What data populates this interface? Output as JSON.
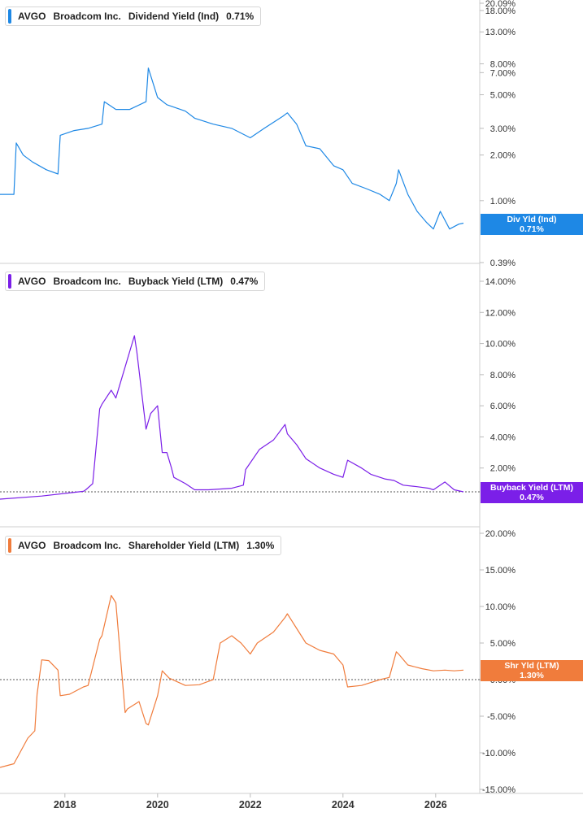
{
  "panels": [
    {
      "ticker": "AVGO",
      "company": "Broadcom Inc.",
      "metric": "Dividend Yield (Ind)",
      "value": "0.71%",
      "badge_label": "Div Yld (Ind)",
      "badge_value": "0.71%",
      "color": "#1e88e5"
    },
    {
      "ticker": "AVGO",
      "company": "Broadcom Inc.",
      "metric": "Buyback Yield (LTM)",
      "value": "0.47%",
      "badge_label": "Buyback Yield (LTM)",
      "badge_value": "0.47%",
      "color": "#7b1fe8"
    },
    {
      "ticker": "AVGO",
      "company": "Broadcom Inc.",
      "metric": "Shareholder Yield (LTM)",
      "value": "1.30%",
      "badge_label": "Shr Yld (LTM)",
      "badge_value": "1.30%",
      "color": "#f07c3c"
    }
  ],
  "chart_data": [
    {
      "type": "line",
      "title": "AVGO Broadcom Inc. Dividend Yield (Ind) 0.71%",
      "scale": "log",
      "color": "#1e88e5",
      "ylim": [
        0.39,
        20.09
      ],
      "y_ticks": [
        "20.09%",
        "18.00%",
        "13.00%",
        "8.00%",
        "7.00%",
        "5.00%",
        "3.00%",
        "2.00%",
        "1.00%",
        "0.71%",
        "0.39%"
      ],
      "y_tick_values": [
        20.09,
        18,
        13,
        8,
        7,
        5,
        3,
        2,
        1,
        0.71,
        0.39
      ],
      "x": [
        2016.6,
        2016.9,
        2016.95,
        2017.1,
        2017.3,
        2017.6,
        2017.85,
        2017.9,
        2018.2,
        2018.5,
        2018.8,
        2018.85,
        2019.1,
        2019.4,
        2019.75,
        2019.8,
        2020.0,
        2020.2,
        2020.6,
        2020.8,
        2021.2,
        2021.6,
        2022.0,
        2022.3,
        2022.7,
        2022.8,
        2023.0,
        2023.2,
        2023.5,
        2023.8,
        2024.0,
        2024.2,
        2024.5,
        2024.8,
        2025.0,
        2025.15,
        2025.2,
        2025.4,
        2025.6,
        2025.8,
        2025.95,
        2026.1,
        2026.3,
        2026.5,
        2026.6
      ],
      "y": [
        1.1,
        1.1,
        2.4,
        2.0,
        1.8,
        1.6,
        1.5,
        2.7,
        2.9,
        3.0,
        3.2,
        4.5,
        4.0,
        4.0,
        4.5,
        7.5,
        4.8,
        4.3,
        3.9,
        3.5,
        3.2,
        3.0,
        2.6,
        3.0,
        3.6,
        3.8,
        3.2,
        2.3,
        2.2,
        1.7,
        1.6,
        1.3,
        1.2,
        1.1,
        1.0,
        1.3,
        1.6,
        1.1,
        0.85,
        0.72,
        0.65,
        0.85,
        0.65,
        0.7,
        0.71
      ],
      "xlim": [
        2016.6,
        2026.6
      ]
    },
    {
      "type": "line",
      "title": "AVGO Broadcom Inc. Buyback Yield (LTM) 0.47%",
      "color": "#7b1fe8",
      "ylim": [
        0,
        14
      ],
      "y_ticks": [
        "14.00%",
        "12.00%",
        "10.00%",
        "8.00%",
        "6.00%",
        "4.00%",
        "2.00%",
        "0.47%"
      ],
      "y_tick_values": [
        14,
        12,
        10,
        8,
        6,
        4,
        2,
        0.47
      ],
      "x": [
        2016.6,
        2017.5,
        2018.3,
        2018.4,
        2018.45,
        2018.6,
        2018.75,
        2018.8,
        2019.0,
        2019.1,
        2019.3,
        2019.5,
        2019.55,
        2019.75,
        2019.85,
        2020.0,
        2020.1,
        2020.2,
        2020.3,
        2020.35,
        2020.6,
        2020.8,
        2021.1,
        2021.6,
        2021.85,
        2021.9,
        2022.2,
        2022.5,
        2022.75,
        2022.8,
        2023.0,
        2023.2,
        2023.5,
        2023.8,
        2024.0,
        2024.1,
        2024.4,
        2024.6,
        2024.9,
        2025.1,
        2025.3,
        2025.6,
        2025.85,
        2025.95,
        2026.2,
        2026.4,
        2026.6
      ],
      "y": [
        0.0,
        0.2,
        0.47,
        0.5,
        0.6,
        1.0,
        5.8,
        6.1,
        7.0,
        6.5,
        8.5,
        10.5,
        9.5,
        4.5,
        5.5,
        6.0,
        3.0,
        3.0,
        2.0,
        1.4,
        1.0,
        0.6,
        0.6,
        0.7,
        0.9,
        1.9,
        3.2,
        3.8,
        4.8,
        4.2,
        3.5,
        2.6,
        2.0,
        1.6,
        1.4,
        2.5,
        2.0,
        1.6,
        1.3,
        1.2,
        0.9,
        0.8,
        0.7,
        0.6,
        1.1,
        0.6,
        0.47
      ],
      "xlim": [
        2016.6,
        2026.6
      ]
    },
    {
      "type": "line",
      "title": "AVGO Broadcom Inc. Shareholder Yield (LTM) 1.30%",
      "color": "#f07c3c",
      "ylim": [
        -15,
        20
      ],
      "y_ticks": [
        "20.00%",
        "15.00%",
        "10.00%",
        "5.00%",
        "1.30%",
        "0.00%",
        "-5.00%",
        "-10.00%",
        "-15.00%"
      ],
      "y_tick_values": [
        20,
        15,
        10,
        5,
        1.3,
        0,
        -5,
        -10,
        -15
      ],
      "x": [
        2016.6,
        2016.9,
        2017.2,
        2017.35,
        2017.4,
        2017.5,
        2017.65,
        2017.85,
        2017.9,
        2018.1,
        2018.4,
        2018.5,
        2018.75,
        2018.8,
        2019.0,
        2019.1,
        2019.3,
        2019.35,
        2019.6,
        2019.75,
        2019.8,
        2020.0,
        2020.1,
        2020.25,
        2020.6,
        2020.9,
        2021.2,
        2021.35,
        2021.6,
        2021.8,
        2022.0,
        2022.15,
        2022.5,
        2022.75,
        2022.8,
        2023.0,
        2023.2,
        2023.5,
        2023.8,
        2024.0,
        2024.1,
        2024.4,
        2024.8,
        2025.0,
        2025.15,
        2025.2,
        2025.4,
        2025.7,
        2025.95,
        2026.2,
        2026.4,
        2026.6
      ],
      "y": [
        -12,
        -11.5,
        -8,
        -7,
        -2,
        2.7,
        2.6,
        1.3,
        -2.2,
        -2.0,
        -1.0,
        -0.8,
        5.5,
        6.0,
        11.5,
        10.5,
        -4.5,
        -4.0,
        -3.0,
        -6.0,
        -6.2,
        -2.2,
        1.2,
        0.2,
        -0.8,
        -0.7,
        0.0,
        5.0,
        6.0,
        5.0,
        3.5,
        5.0,
        6.5,
        8.5,
        9.0,
        7.0,
        5.0,
        4.0,
        3.5,
        2.0,
        -1.0,
        -0.8,
        0.0,
        0.3,
        3.8,
        3.5,
        2.0,
        1.5,
        1.2,
        1.3,
        1.2,
        1.3
      ],
      "xlim": [
        2016.6,
        2026.6
      ]
    }
  ],
  "x_axis": {
    "ticks": [
      "2018",
      "2020",
      "2022",
      "2024",
      "2026"
    ],
    "tick_values": [
      2018,
      2020,
      2022,
      2024,
      2026
    ]
  }
}
